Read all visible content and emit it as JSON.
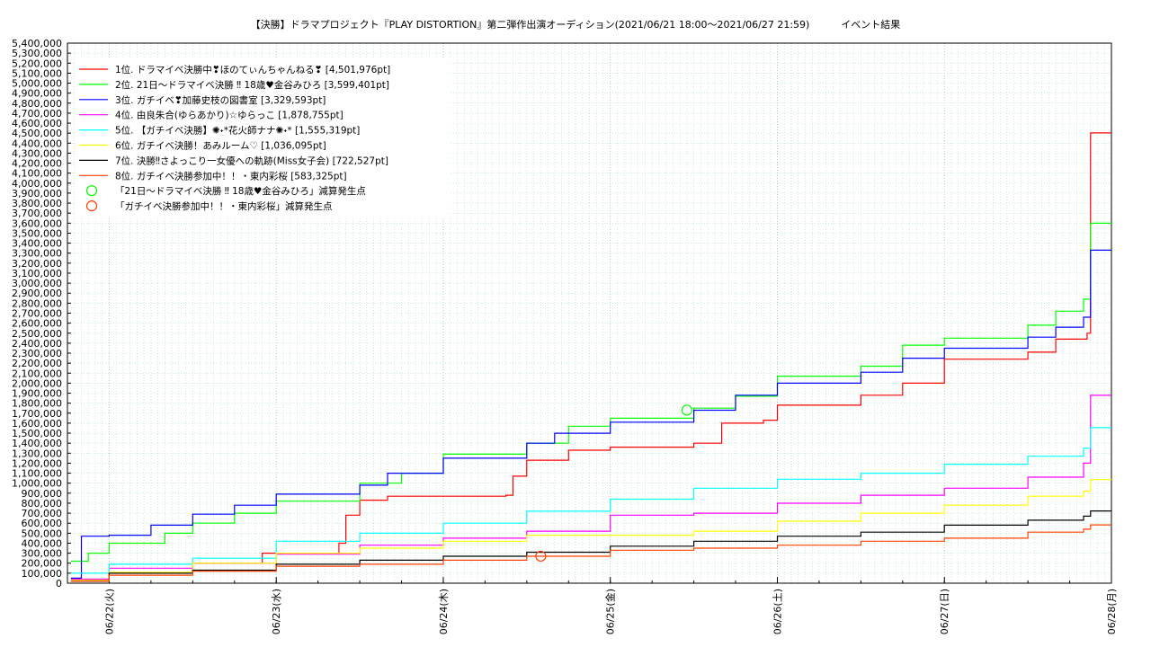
{
  "chart_data": {
    "type": "line",
    "title": "【決勝】ドラマプロジェクト『PLAY DISTORTION』第二弾作出演オーディション(2021/06/21 18:00～2021/06/27 21:59)          イベント結果",
    "xlabel": "",
    "ylabel": "",
    "ylim": [
      0,
      5400000
    ],
    "xlim": [
      "2021-06-21 18:00",
      "2021-06-28 00:00"
    ],
    "grid": true,
    "legend_position": "top-left",
    "x_tick_labels": [
      "06/22(火)",
      "06/23(水)",
      "06/24(木)",
      "06/25(金)",
      "06/26(土)",
      "06/27(日)",
      "06/28(月)"
    ],
    "y_tick_labels": [
      "0",
      "100,000",
      "200,000",
      "300,000",
      "400,000",
      "500,000",
      "600,000",
      "700,000",
      "800,000",
      "900,000",
      "1,000,000",
      "1,100,000",
      "1,200,000",
      "1,300,000",
      "1,400,000",
      "1,500,000",
      "1,600,000",
      "1,700,000",
      "1,800,000",
      "1,900,000",
      "2,000,000",
      "2,100,000",
      "2,200,000",
      "2,300,000",
      "2,400,000",
      "2,500,000",
      "2,600,000",
      "2,700,000",
      "2,800,000",
      "2,900,000",
      "3,000,000",
      "3,100,000",
      "3,200,000",
      "3,300,000",
      "3,400,000",
      "3,500,000",
      "3,600,000",
      "3,700,000",
      "3,800,000",
      "3,900,000",
      "4,000,000",
      "4,100,000",
      "4,200,000",
      "4,300,000",
      "4,400,000",
      "4,500,000",
      "4,600,000",
      "4,700,000",
      "4,800,000",
      "4,900,000",
      "5,000,000",
      "5,100,000",
      "5,200,000",
      "5,300,000",
      "5,400,000"
    ],
    "series": [
      {
        "name": "1位. ドラマイベ決勝中❣ほのてぃんちゃんねる❣ [4,501,976pt]",
        "color": "#ff0000",
        "points": [
          [
            "2021-06-21 18:30",
            30000
          ],
          [
            "2021-06-22 00:00",
            100000
          ],
          [
            "2021-06-22 12:00",
            200000
          ],
          [
            "2021-06-22 22:00",
            300000
          ],
          [
            "2021-06-23 09:00",
            400000
          ],
          [
            "2021-06-23 10:00",
            680000
          ],
          [
            "2021-06-23 12:00",
            830000
          ],
          [
            "2021-06-23 16:00",
            870000
          ],
          [
            "2021-06-24 00:00",
            870000
          ],
          [
            "2021-06-24 09:00",
            880000
          ],
          [
            "2021-06-24 10:00",
            1070000
          ],
          [
            "2021-06-24 12:00",
            1230000
          ],
          [
            "2021-06-24 18:00",
            1330000
          ],
          [
            "2021-06-25 00:00",
            1360000
          ],
          [
            "2021-06-25 12:00",
            1400000
          ],
          [
            "2021-06-25 16:00",
            1600000
          ],
          [
            "2021-06-25 22:00",
            1630000
          ],
          [
            "2021-06-26 00:00",
            1780000
          ],
          [
            "2021-06-26 12:00",
            1880000
          ],
          [
            "2021-06-26 18:00",
            2000000
          ],
          [
            "2021-06-27 00:00",
            2240000
          ],
          [
            "2021-06-27 12:00",
            2310000
          ],
          [
            "2021-06-27 16:00",
            2440000
          ],
          [
            "2021-06-27 20:30",
            2500000
          ],
          [
            "2021-06-27 21:00",
            4501976
          ],
          [
            "2021-06-28 00:00",
            4501976
          ]
        ]
      },
      {
        "name": "2位. 21日～ドラマイベ決勝 ‼ 18歳♥金谷みひろ [3,599,401pt]",
        "color": "#00ff00",
        "points": [
          [
            "2021-06-21 18:30",
            220000
          ],
          [
            "2021-06-21 21:00",
            300000
          ],
          [
            "2021-06-22 00:00",
            400000
          ],
          [
            "2021-06-22 08:00",
            500000
          ],
          [
            "2021-06-22 12:00",
            600000
          ],
          [
            "2021-06-22 18:00",
            700000
          ],
          [
            "2021-06-23 00:00",
            820000
          ],
          [
            "2021-06-23 12:00",
            1000000
          ],
          [
            "2021-06-23 18:00",
            1100000
          ],
          [
            "2021-06-24 00:00",
            1290000
          ],
          [
            "2021-06-24 12:00",
            1400000
          ],
          [
            "2021-06-24 18:00",
            1570000
          ],
          [
            "2021-06-25 00:00",
            1650000
          ],
          [
            "2021-06-25 12:00",
            1750000
          ],
          [
            "2021-06-25 18:00",
            1870000
          ],
          [
            "2021-06-26 00:00",
            2070000
          ],
          [
            "2021-06-26 12:00",
            2170000
          ],
          [
            "2021-06-26 18:00",
            2380000
          ],
          [
            "2021-06-27 00:00",
            2450000
          ],
          [
            "2021-06-27 12:00",
            2580000
          ],
          [
            "2021-06-27 16:00",
            2720000
          ],
          [
            "2021-06-27 20:00",
            2840000
          ],
          [
            "2021-06-27 21:00",
            3599401
          ],
          [
            "2021-06-28 00:00",
            3599401
          ]
        ]
      },
      {
        "name": "3位. ガチイベ❣加藤史枝の図書室 [3,329,593pt]",
        "color": "#0000ff",
        "points": [
          [
            "2021-06-21 18:30",
            50000
          ],
          [
            "2021-06-21 20:00",
            470000
          ],
          [
            "2021-06-22 00:00",
            480000
          ],
          [
            "2021-06-22 06:00",
            580000
          ],
          [
            "2021-06-22 12:00",
            690000
          ],
          [
            "2021-06-22 18:00",
            780000
          ],
          [
            "2021-06-23 00:00",
            890000
          ],
          [
            "2021-06-23 12:00",
            980000
          ],
          [
            "2021-06-23 16:00",
            1100000
          ],
          [
            "2021-06-24 00:00",
            1250000
          ],
          [
            "2021-06-24 12:00",
            1400000
          ],
          [
            "2021-06-24 16:00",
            1500000
          ],
          [
            "2021-06-25 00:00",
            1610000
          ],
          [
            "2021-06-25 12:00",
            1730000
          ],
          [
            "2021-06-25 18:00",
            1880000
          ],
          [
            "2021-06-26 00:00",
            2000000
          ],
          [
            "2021-06-26 12:00",
            2110000
          ],
          [
            "2021-06-26 18:00",
            2250000
          ],
          [
            "2021-06-27 00:00",
            2350000
          ],
          [
            "2021-06-27 12:00",
            2460000
          ],
          [
            "2021-06-27 16:00",
            2560000
          ],
          [
            "2021-06-27 20:00",
            2660000
          ],
          [
            "2021-06-27 21:00",
            3329593
          ],
          [
            "2021-06-28 00:00",
            3329593
          ]
        ]
      },
      {
        "name": "4位. 由良朱合(ゆらあかり)☆ゆらっこ [1,878,755pt]",
        "color": "#ff00ff",
        "points": [
          [
            "2021-06-21 18:30",
            40000
          ],
          [
            "2021-06-22 00:00",
            150000
          ],
          [
            "2021-06-22 12:00",
            200000
          ],
          [
            "2021-06-23 00:00",
            290000
          ],
          [
            "2021-06-23 12:00",
            380000
          ],
          [
            "2021-06-24 00:00",
            450000
          ],
          [
            "2021-06-24 12:00",
            520000
          ],
          [
            "2021-06-25 00:00",
            680000
          ],
          [
            "2021-06-25 12:00",
            700000
          ],
          [
            "2021-06-26 00:00",
            800000
          ],
          [
            "2021-06-26 12:00",
            880000
          ],
          [
            "2021-06-27 00:00",
            950000
          ],
          [
            "2021-06-27 12:00",
            1060000
          ],
          [
            "2021-06-27 20:00",
            1200000
          ],
          [
            "2021-06-27 21:00",
            1878755
          ],
          [
            "2021-06-28 00:00",
            1878755
          ]
        ]
      },
      {
        "name": "5位. 【ガチイベ決勝】✺˖*花火師ナナ✺˖* [1,555,319pt]",
        "color": "#00ffff",
        "points": [
          [
            "2021-06-21 18:30",
            100000
          ],
          [
            "2021-06-22 00:00",
            190000
          ],
          [
            "2021-06-22 12:00",
            250000
          ],
          [
            "2021-06-23 00:00",
            420000
          ],
          [
            "2021-06-23 12:00",
            500000
          ],
          [
            "2021-06-24 00:00",
            600000
          ],
          [
            "2021-06-24 12:00",
            720000
          ],
          [
            "2021-06-25 00:00",
            840000
          ],
          [
            "2021-06-25 12:00",
            950000
          ],
          [
            "2021-06-26 00:00",
            1040000
          ],
          [
            "2021-06-26 12:00",
            1100000
          ],
          [
            "2021-06-27 00:00",
            1190000
          ],
          [
            "2021-06-27 12:00",
            1270000
          ],
          [
            "2021-06-27 20:00",
            1350000
          ],
          [
            "2021-06-27 21:00",
            1555319
          ],
          [
            "2021-06-28 00:00",
            1555319
          ]
        ]
      },
      {
        "name": "6位. ガチイベ決勝！あみルーム♡ [1,036,095pt]",
        "color": "#ffff00",
        "points": [
          [
            "2021-06-21 18:30",
            30000
          ],
          [
            "2021-06-22 00:00",
            110000
          ],
          [
            "2021-06-22 12:00",
            200000
          ],
          [
            "2021-06-23 00:00",
            300000
          ],
          [
            "2021-06-23 12:00",
            350000
          ],
          [
            "2021-06-24 00:00",
            420000
          ],
          [
            "2021-06-24 12:00",
            480000
          ],
          [
            "2021-06-25 00:00",
            480000
          ],
          [
            "2021-06-25 12:00",
            520000
          ],
          [
            "2021-06-26 00:00",
            620000
          ],
          [
            "2021-06-26 12:00",
            700000
          ],
          [
            "2021-06-27 00:00",
            780000
          ],
          [
            "2021-06-27 12:00",
            870000
          ],
          [
            "2021-06-27 20:00",
            920000
          ],
          [
            "2021-06-27 21:00",
            1036095
          ],
          [
            "2021-06-28 00:00",
            1036095
          ]
        ]
      },
      {
        "name": "7位. 決勝‼さよっこり一女優への軌跡(Miss女子会) [722,527pt]",
        "color": "#000000",
        "points": [
          [
            "2021-06-21 18:30",
            20000
          ],
          [
            "2021-06-22 00:00",
            100000
          ],
          [
            "2021-06-22 12:00",
            130000
          ],
          [
            "2021-06-23 00:00",
            190000
          ],
          [
            "2021-06-23 12:00",
            230000
          ],
          [
            "2021-06-24 00:00",
            270000
          ],
          [
            "2021-06-24 12:00",
            310000
          ],
          [
            "2021-06-25 00:00",
            370000
          ],
          [
            "2021-06-25 12:00",
            420000
          ],
          [
            "2021-06-26 00:00",
            470000
          ],
          [
            "2021-06-26 12:00",
            510000
          ],
          [
            "2021-06-27 00:00",
            580000
          ],
          [
            "2021-06-27 12:00",
            630000
          ],
          [
            "2021-06-27 20:00",
            670000
          ],
          [
            "2021-06-27 21:00",
            722527
          ],
          [
            "2021-06-28 00:00",
            722527
          ]
        ]
      },
      {
        "name": "8位. ガチイベ決勝参加中！！・東内彩桜 [583,325pt]",
        "color": "#ff4000",
        "points": [
          [
            "2021-06-21 18:30",
            20000
          ],
          [
            "2021-06-22 00:00",
            80000
          ],
          [
            "2021-06-22 12:00",
            120000
          ],
          [
            "2021-06-23 00:00",
            170000
          ],
          [
            "2021-06-23 12:00",
            190000
          ],
          [
            "2021-06-24 00:00",
            230000
          ],
          [
            "2021-06-24 12:00",
            270000
          ],
          [
            "2021-06-25 00:00",
            330000
          ],
          [
            "2021-06-25 12:00",
            350000
          ],
          [
            "2021-06-26 00:00",
            380000
          ],
          [
            "2021-06-26 12:00",
            420000
          ],
          [
            "2021-06-27 00:00",
            450000
          ],
          [
            "2021-06-27 12:00",
            510000
          ],
          [
            "2021-06-27 20:00",
            540000
          ],
          [
            "2021-06-27 21:00",
            583325
          ],
          [
            "2021-06-28 00:00",
            583325
          ]
        ]
      }
    ],
    "markers": [
      {
        "name": "「21日～ドラマイベ決勝 ‼ 18歳♥金谷みひろ」減算発生点",
        "color": "#00ff00",
        "x": "2021-06-25 11:00",
        "y": 1730000
      },
      {
        "name": "「ガチイベ決勝参加中！！・東内彩桜」減算発生点",
        "color": "#ff4000",
        "x": "2021-06-24 14:00",
        "y": 270000
      }
    ]
  }
}
